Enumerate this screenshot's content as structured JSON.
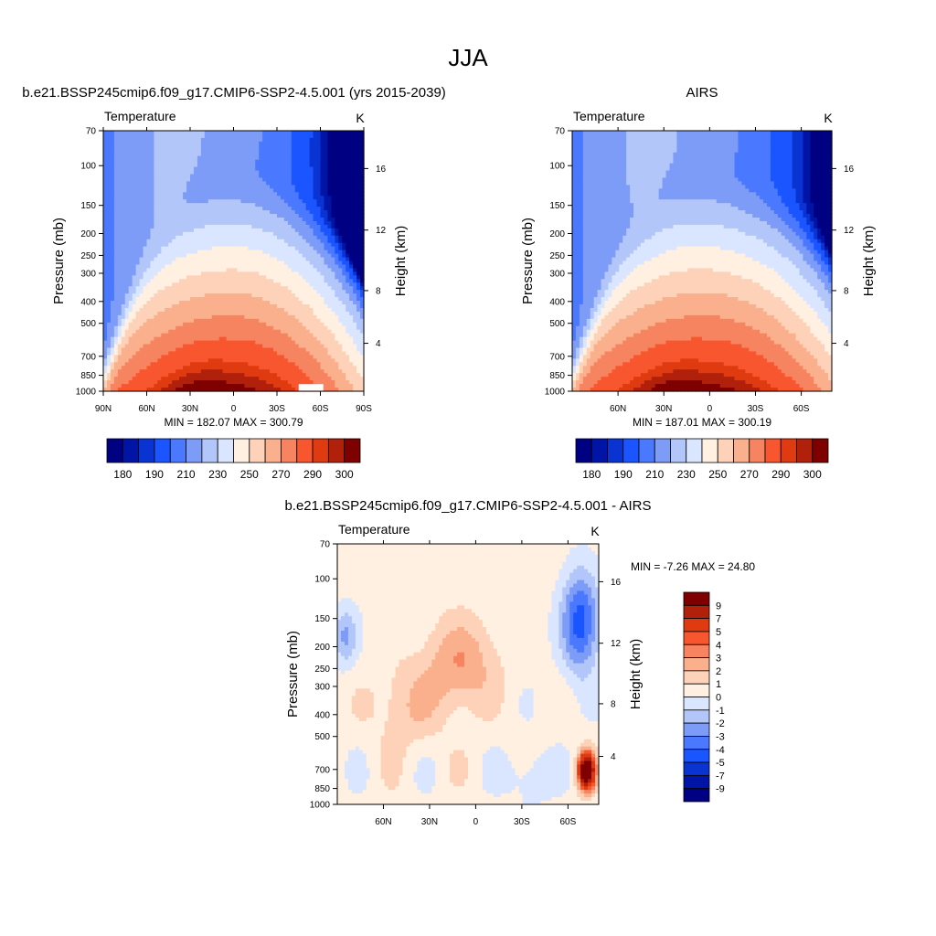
{
  "title": "JJA",
  "colors": {
    "abs": [
      "#000082",
      "#0014a6",
      "#0a34d2",
      "#1a55ff",
      "#4a78ff",
      "#7d9cf7",
      "#b2c6fa",
      "#dae6ff",
      "#fff0e1",
      "#fdd2b8",
      "#fab08c",
      "#f68460",
      "#f7562e",
      "#df3a10",
      "#b0200a",
      "#7f0000"
    ],
    "diff": [
      "#000082",
      "#0014a6",
      "#0a34d2",
      "#1a55ff",
      "#4a78ff",
      "#7d9cf7",
      "#b2c6fa",
      "#dae6ff",
      "#fff0e1",
      "#fdd2b8",
      "#fab08c",
      "#f68460",
      "#f7562e",
      "#df3a10",
      "#b0200a",
      "#7f0000"
    ]
  },
  "panels": [
    {
      "title": "b.e21.BSSP245cmip6.f09_g17.CMIP6-SSP2-4.5.001 (yrs 2015-2039)",
      "left_label": "Temperature",
      "right_label": "K",
      "minmax": "MIN = 182.07  MAX = 300.79",
      "ylabel": "Pressure (mb)",
      "y2label": "Height (km)"
    },
    {
      "title": "AIRS",
      "left_label": "Temperature",
      "right_label": "K",
      "minmax": "MIN = 187.01  MAX = 300.19",
      "ylabel": "Pressure (mb)",
      "y2label": "Height (km)"
    },
    {
      "title": "b.e21.BSSP245cmip6.f09_g17.CMIP6-SSP2-4.5.001 - AIRS",
      "left_label": "Temperature",
      "right_label": "K",
      "minmax": "MIN =  -7.26  MAX =  24.80",
      "ylabel": "Pressure (mb)",
      "y2label": "Height (km)"
    }
  ],
  "chart_data": [
    {
      "type": "heatmap",
      "title": "b.e21.BSSP245cmip6.f09_g17.CMIP6-SSP2-4.5.001 (yrs 2015-2039)",
      "ylabel": "Pressure (mb)",
      "y2label": "Height (km)",
      "y_scale": "log",
      "ylim": [
        1000,
        70
      ],
      "xlim": [
        90,
        -90
      ],
      "x_ticks": [
        {
          "v": 90,
          "label": "90N"
        },
        {
          "v": 60,
          "label": "60N"
        },
        {
          "v": 30,
          "label": "30N"
        },
        {
          "v": 0,
          "label": "0"
        },
        {
          "v": -30,
          "label": "30S"
        },
        {
          "v": -60,
          "label": "60S"
        },
        {
          "v": -90,
          "label": "90S"
        }
      ],
      "y_ticks": [
        1000,
        850,
        700,
        500,
        400,
        300,
        250,
        200,
        150,
        100,
        70
      ],
      "y2_ticks": [
        {
          "km": 4,
          "p": 613
        },
        {
          "km": 8,
          "p": 358
        },
        {
          "km": 12,
          "p": 193
        },
        {
          "km": 16,
          "p": 103
        }
      ],
      "min": 182.07,
      "max": 300.79,
      "levels": [
        180,
        185,
        190,
        200,
        210,
        220,
        230,
        240,
        250,
        260,
        270,
        280,
        290,
        295,
        300
      ],
      "colorbar_labels": [
        "180",
        "190",
        "210",
        "230",
        "250",
        "270",
        "290",
        "300"
      ],
      "colorbar_label_index": [
        0,
        2,
        4,
        6,
        8,
        10,
        12,
        14
      ],
      "missing_box": {
        "lat": [
          -45,
          -62
        ],
        "p": [
          1000,
          930
        ]
      }
    },
    {
      "type": "heatmap",
      "title": "AIRS",
      "ylabel": "Pressure (mb)",
      "y2label": "Height (km)",
      "y_scale": "log",
      "ylim": [
        1000,
        70
      ],
      "xlim": [
        90,
        -80
      ],
      "x_ticks": [
        {
          "v": 60,
          "label": "60N"
        },
        {
          "v": 30,
          "label": "30N"
        },
        {
          "v": 0,
          "label": "0"
        },
        {
          "v": -30,
          "label": "30S"
        },
        {
          "v": -60,
          "label": "60S"
        }
      ],
      "y_ticks": [
        1000,
        850,
        700,
        500,
        400,
        300,
        250,
        200,
        150,
        100,
        70
      ],
      "y2_ticks": [
        {
          "km": 4,
          "p": 613
        },
        {
          "km": 8,
          "p": 358
        },
        {
          "km": 12,
          "p": 193
        },
        {
          "km": 16,
          "p": 103
        }
      ],
      "min": 187.01,
      "max": 300.19,
      "levels": [
        180,
        185,
        190,
        200,
        210,
        220,
        230,
        240,
        250,
        260,
        270,
        280,
        290,
        295,
        300
      ],
      "colorbar_labels": [
        "180",
        "190",
        "210",
        "230",
        "250",
        "270",
        "290",
        "300"
      ],
      "colorbar_label_index": [
        0,
        2,
        4,
        6,
        8,
        10,
        12,
        14
      ]
    },
    {
      "type": "heatmap",
      "title": "b.e21.BSSP245cmip6.f09_g17.CMIP6-SSP2-4.5.001 - AIRS",
      "ylabel": "Pressure (mb)",
      "y2label": "Height (km)",
      "y_scale": "log",
      "ylim": [
        1000,
        70
      ],
      "xlim": [
        90,
        -80
      ],
      "x_ticks": [
        {
          "v": 60,
          "label": "60N"
        },
        {
          "v": 30,
          "label": "30N"
        },
        {
          "v": 0,
          "label": "0"
        },
        {
          "v": -30,
          "label": "30S"
        },
        {
          "v": -60,
          "label": "60S"
        }
      ],
      "y_ticks": [
        1000,
        850,
        700,
        500,
        400,
        300,
        250,
        200,
        150,
        100,
        70
      ],
      "y2_ticks": [
        {
          "km": 4,
          "p": 613
        },
        {
          "km": 8,
          "p": 358
        },
        {
          "km": 12,
          "p": 193
        },
        {
          "km": 16,
          "p": 103
        }
      ],
      "min": -7.26,
      "max": 24.8,
      "levels": [
        -9,
        -7,
        -5,
        -4,
        -3,
        -2,
        -1,
        0,
        1,
        2,
        3,
        4,
        5,
        7,
        9
      ],
      "colorbar_labels": [
        "9",
        "7",
        "5",
        "4",
        "3",
        "2",
        "1",
        "0",
        "-1",
        "-2",
        "-3",
        "-4",
        "-5",
        "-7",
        "-9"
      ]
    }
  ]
}
